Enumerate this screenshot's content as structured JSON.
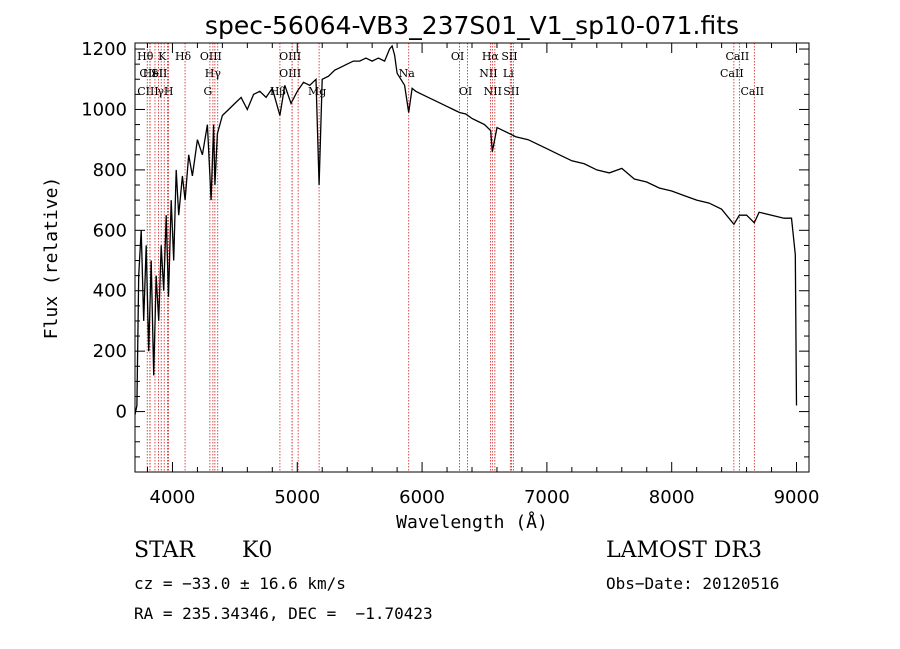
{
  "chart_data": {
    "type": "line",
    "title": "spec-56064-VB3_237S01_V1_sp10-071.fits",
    "xlabel": "Wavelength (Å)",
    "ylabel": "Flux (relative)",
    "xlim": [
      3700,
      9100
    ],
    "ylim": [
      -200,
      1220
    ],
    "xticks": [
      4000,
      5000,
      6000,
      7000,
      8000,
      9000
    ],
    "yticks": [
      0,
      200,
      400,
      600,
      800,
      1000,
      1200
    ],
    "series": [
      {
        "name": "flux",
        "x": [
          3700,
          3715,
          3730,
          3750,
          3770,
          3790,
          3810,
          3830,
          3850,
          3870,
          3890,
          3910,
          3930,
          3950,
          3968,
          3990,
          4010,
          4030,
          4050,
          4080,
          4101,
          4130,
          4160,
          4200,
          4240,
          4280,
          4310,
          4330,
          4340,
          4360,
          4400,
          4450,
          4500,
          4550,
          4600,
          4650,
          4700,
          4750,
          4800,
          4861,
          4900,
          4950,
          5000,
          5050,
          5100,
          5150,
          5175,
          5200,
          5250,
          5300,
          5350,
          5400,
          5450,
          5500,
          5550,
          5600,
          5650,
          5700,
          5740,
          5760,
          5780,
          5800,
          5830,
          5860,
          5893,
          5920,
          5950,
          6000,
          6050,
          6100,
          6150,
          6200,
          6250,
          6300,
          6350,
          6400,
          6450,
          6500,
          6550,
          6563,
          6600,
          6650,
          6700,
          6750,
          6800,
          6850,
          6900,
          6950,
          7000,
          7100,
          7200,
          7300,
          7400,
          7500,
          7600,
          7700,
          7800,
          7900,
          8000,
          8100,
          8200,
          8300,
          8400,
          8498,
          8542,
          8600,
          8662,
          8700,
          8800,
          8900,
          8960,
          8990,
          9000
        ],
        "values": [
          -10,
          20,
          450,
          600,
          300,
          550,
          200,
          500,
          120,
          450,
          300,
          550,
          400,
          650,
          380,
          700,
          500,
          800,
          650,
          780,
          700,
          850,
          780,
          900,
          850,
          950,
          700,
          950,
          750,
          920,
          980,
          1000,
          1020,
          1040,
          1000,
          1050,
          1060,
          1040,
          1070,
          980,
          1080,
          1020,
          1060,
          1090,
          1080,
          1100,
          750,
          1100,
          1110,
          1130,
          1140,
          1150,
          1160,
          1160,
          1170,
          1160,
          1170,
          1160,
          1200,
          1210,
          1180,
          1120,
          1100,
          1080,
          990,
          1070,
          1060,
          1050,
          1040,
          1030,
          1020,
          1010,
          1000,
          990,
          985,
          970,
          960,
          950,
          930,
          860,
          940,
          930,
          920,
          910,
          905,
          900,
          890,
          880,
          870,
          850,
          830,
          820,
          800,
          790,
          805,
          770,
          760,
          740,
          730,
          715,
          700,
          690,
          670,
          620,
          650,
          650,
          625,
          660,
          650,
          640,
          640,
          520,
          20
        ]
      }
    ],
    "lines": [
      {
        "wl": 3798,
        "label": "Hθ",
        "row": 0
      },
      {
        "wl": 3820,
        "label": "CII",
        "row": 1
      },
      {
        "wl": 3820,
        "label": "CIII",
        "row": 2
      },
      {
        "wl": 3860,
        "label": "HeI",
        "row": 1
      },
      {
        "wl": 3889,
        "label": "",
        "row": -1
      },
      {
        "wl": 3910,
        "label": "SII",
        "row": 1
      },
      {
        "wl": 3934,
        "label": "K",
        "row": 0
      },
      {
        "wl": 3960,
        "label": "γH",
        "row": 2
      },
      {
        "wl": 3968,
        "label": "",
        "row": -1
      },
      {
        "wl": 4101,
        "label": "Hδ",
        "row": 0
      },
      {
        "wl": 4300,
        "label": "G",
        "row": 2
      },
      {
        "wl": 4324,
        "label": "OIII",
        "row": 0
      },
      {
        "wl": 4340,
        "label": "Hγ",
        "row": 1
      },
      {
        "wl": 4363,
        "label": "",
        "row": -1
      },
      {
        "wl": 4861,
        "label": "Hβ",
        "row": 2
      },
      {
        "wl": 4959,
        "label": "OIII",
        "row": 0
      },
      {
        "wl": 4959,
        "label": "OIII",
        "row": 1
      },
      {
        "wl": 5007,
        "label": "",
        "row": -1
      },
      {
        "wl": 5175,
        "label": "Mg",
        "row": 2
      },
      {
        "wl": 5893,
        "label": "Na",
        "row": 1
      },
      {
        "wl": 6300,
        "label": "OI",
        "row": 0
      },
      {
        "wl": 6364,
        "label": "OI",
        "row": 2
      },
      {
        "wl": 6548,
        "label": "NII",
        "row": 1
      },
      {
        "wl": 6563,
        "label": "Hα",
        "row": 0
      },
      {
        "wl": 6583,
        "label": "NII",
        "row": 2
      },
      {
        "wl": 6707,
        "label": "Li",
        "row": 1
      },
      {
        "wl": 6716,
        "label": "SII",
        "row": 0
      },
      {
        "wl": 6731,
        "label": "SII",
        "row": 2
      },
      {
        "wl": 8498,
        "label": "CaII",
        "row": 1
      },
      {
        "wl": 8542,
        "label": "CaII",
        "row": 0
      },
      {
        "wl": 8662,
        "label": "CaII",
        "row": 2
      }
    ]
  },
  "info": {
    "star_class": "STAR",
    "subclass": "K0",
    "survey": "LAMOST DR3",
    "cz": "cz = −33.0 ± 16.6 km/s",
    "obs_date": "Obs−Date: 20120516",
    "coords": "RA = 235.34346, DEC =  −1.70423"
  },
  "colors": {
    "axis": "#000000",
    "line": "#000000",
    "marker": "#cc2222"
  }
}
